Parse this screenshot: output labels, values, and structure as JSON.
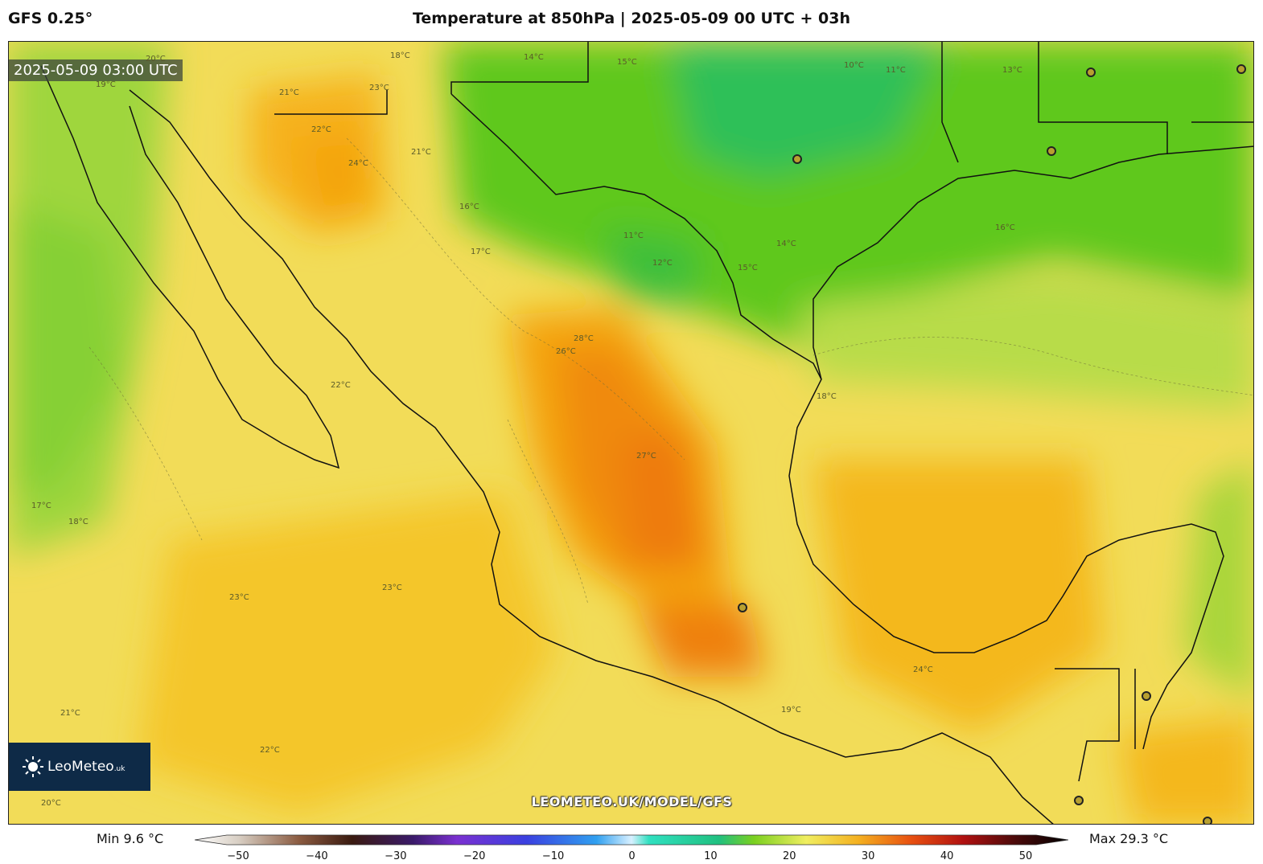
{
  "header": {
    "model": "GFS 0.25°",
    "title": "Temperature at 850hPa | 2025-05-09 00 UTC + 03h"
  },
  "map": {
    "valid_time": "2025-05-09 03:00 UTC",
    "watermark": "LEOMETEO.UK/MODEL/GFS",
    "logo_text": "LeoMeteo",
    "logo_suffix": ".uk",
    "contour_labels": [
      "20°C",
      "18°C",
      "14°C",
      "15°C",
      "10°C",
      "11°C",
      "13°C",
      "19°C",
      "21°C",
      "23°C",
      "24°C",
      "22°C",
      "21°C",
      "11°C",
      "12°C",
      "16°C",
      "17°C",
      "16°C",
      "14°C",
      "15°C",
      "18°C",
      "26°C",
      "28°C",
      "27°C",
      "22°C",
      "23°C",
      "17°C",
      "18°C",
      "21°C",
      "23°C",
      "22°C",
      "19°C",
      "24°C",
      "20°C"
    ],
    "colors": {
      "cool": "#5ec81e",
      "mild": "#a8d63a",
      "warm": "#f4e45c",
      "hot": "#f6b21c",
      "hottest": "#f07a0c",
      "coast": "#111111"
    }
  },
  "legend": {
    "min_label": "Min 9.6 °C",
    "max_label": "Max 29.3 °C",
    "ticks": [
      "−50",
      "−40",
      "−30",
      "−20",
      "−10",
      "0",
      "10",
      "20",
      "30",
      "40",
      "50"
    ],
    "scale_min": -50,
    "scale_max": 50
  }
}
